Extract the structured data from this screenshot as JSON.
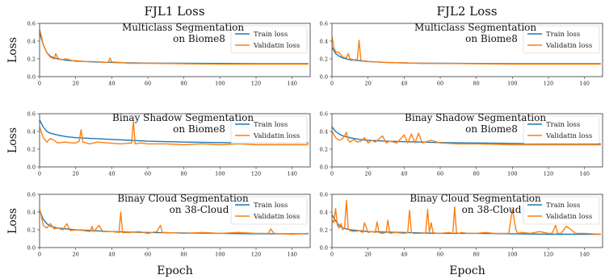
{
  "column_titles": [
    "FJL1 Loss",
    "FJL2 Loss"
  ],
  "row_ylabel": "Loss",
  "xlabel": "Epoch",
  "colors": {
    "train": "#1f77b4",
    "validation": "#ff7f0e"
  },
  "chart_data": [
    {
      "type": "line",
      "panel": "FJL1 row 1",
      "annotation": [
        "Multiclass Segmentation",
        "on Biome8"
      ],
      "legend": [
        "Train loss",
        "Validatin loss"
      ],
      "legend_placement": "upper-right",
      "xlim": [
        0,
        150
      ],
      "ylim": [
        0,
        0.6
      ],
      "xticks": [
        0,
        20,
        40,
        60,
        80,
        100,
        120,
        140
      ],
      "yticks": [
        "0.0",
        "0.2",
        "0.4",
        "0.6"
      ],
      "series": [
        {
          "name": "Train loss",
          "x": [
            0,
            2,
            4,
            6,
            8,
            10,
            15,
            20,
            30,
            40,
            50,
            60,
            80,
            100,
            120,
            149
          ],
          "values": [
            0.5,
            0.36,
            0.27,
            0.23,
            0.21,
            0.2,
            0.185,
            0.175,
            0.165,
            0.16,
            0.155,
            0.152,
            0.15,
            0.148,
            0.145,
            0.145
          ]
        },
        {
          "name": "Validatin loss",
          "x": [
            0,
            1,
            2,
            4,
            6,
            8,
            9,
            10,
            12,
            15,
            18,
            20,
            25,
            30,
            38,
            39,
            40,
            45,
            50,
            60,
            80,
            100,
            120,
            149
          ],
          "values": [
            0.53,
            0.46,
            0.36,
            0.27,
            0.22,
            0.2,
            0.26,
            0.21,
            0.19,
            0.2,
            0.18,
            0.18,
            0.17,
            0.17,
            0.16,
            0.21,
            0.165,
            0.16,
            0.15,
            0.15,
            0.145,
            0.14,
            0.14,
            0.14
          ]
        }
      ]
    },
    {
      "type": "line",
      "panel": "FJL2 row 1",
      "annotation": [
        "Multiclass Segmentation",
        "on Biome8"
      ],
      "legend": [
        "Train loss",
        "Validatin loss"
      ],
      "legend_placement": "upper-right",
      "xlim": [
        0,
        150
      ],
      "ylim": [
        0,
        0.6
      ],
      "xticks": [
        0,
        20,
        40,
        60,
        80,
        100,
        120,
        140
      ],
      "yticks": [
        "0.0",
        "0.2",
        "0.4",
        "0.6"
      ],
      "series": [
        {
          "name": "Train loss",
          "x": [
            0,
            2,
            4,
            6,
            8,
            10,
            15,
            20,
            30,
            40,
            50,
            60,
            80,
            100,
            120,
            149
          ],
          "values": [
            0.33,
            0.26,
            0.23,
            0.21,
            0.2,
            0.19,
            0.18,
            0.17,
            0.16,
            0.155,
            0.15,
            0.15,
            0.148,
            0.146,
            0.145,
            0.145
          ]
        },
        {
          "name": "Validatin loss",
          "x": [
            0,
            1,
            2,
            4,
            6,
            8,
            9,
            10,
            12,
            14,
            15,
            16,
            17,
            18,
            20,
            25,
            30,
            40,
            50,
            60,
            80,
            100,
            120,
            149
          ],
          "values": [
            0.45,
            0.33,
            0.28,
            0.27,
            0.22,
            0.21,
            0.26,
            0.2,
            0.19,
            0.19,
            0.41,
            0.19,
            0.17,
            0.18,
            0.17,
            0.165,
            0.16,
            0.155,
            0.15,
            0.148,
            0.145,
            0.14,
            0.14,
            0.14
          ]
        }
      ]
    },
    {
      "type": "line",
      "panel": "FJL1 row 2",
      "annotation": [
        "Binay Shadow Segmentation",
        "on Biome8"
      ],
      "legend": [
        "Train loss",
        "Validatin loss"
      ],
      "legend_placement": "upper-right",
      "xlim": [
        0,
        150
      ],
      "ylim": [
        0,
        0.6
      ],
      "xticks": [
        0,
        20,
        40,
        60,
        80,
        100,
        120,
        140
      ],
      "yticks": [
        "0.0",
        "0.2",
        "0.4",
        "0.6"
      ],
      "series": [
        {
          "name": "Train loss",
          "x": [
            0,
            2,
            4,
            6,
            10,
            15,
            20,
            30,
            40,
            50,
            60,
            80,
            100,
            120,
            149
          ],
          "values": [
            0.53,
            0.45,
            0.4,
            0.38,
            0.36,
            0.34,
            0.33,
            0.32,
            0.31,
            0.3,
            0.29,
            0.28,
            0.275,
            0.27,
            0.27
          ]
        },
        {
          "name": "Validatin loss",
          "x": [
            0,
            2,
            4,
            6,
            8,
            10,
            14,
            18,
            20,
            22,
            23,
            24,
            28,
            32,
            38,
            45,
            51,
            52,
            53,
            56,
            60,
            70,
            80,
            90,
            100,
            110,
            120,
            130,
            149
          ],
          "values": [
            0.45,
            0.33,
            0.28,
            0.32,
            0.3,
            0.27,
            0.28,
            0.27,
            0.27,
            0.29,
            0.42,
            0.28,
            0.26,
            0.28,
            0.27,
            0.26,
            0.27,
            0.51,
            0.26,
            0.27,
            0.26,
            0.26,
            0.25,
            0.26,
            0.25,
            0.26,
            0.25,
            0.25,
            0.25
          ]
        }
      ]
    },
    {
      "type": "line",
      "panel": "FJL2 row 2",
      "annotation": [
        "Binay Shadow Segmentation",
        "on Biome8"
      ],
      "legend": [
        "Train loss",
        "Validatin loss"
      ],
      "legend_placement": "upper-right",
      "xlim": [
        0,
        150
      ],
      "ylim": [
        0,
        0.6
      ],
      "xticks": [
        0,
        20,
        40,
        60,
        80,
        100,
        120,
        140
      ],
      "yticks": [
        "0.0",
        "0.2",
        "0.4",
        "0.6"
      ],
      "series": [
        {
          "name": "Train loss",
          "x": [
            0,
            2,
            4,
            6,
            10,
            15,
            20,
            30,
            40,
            50,
            60,
            80,
            100,
            120,
            149
          ],
          "values": [
            0.45,
            0.4,
            0.37,
            0.35,
            0.33,
            0.31,
            0.3,
            0.29,
            0.285,
            0.28,
            0.275,
            0.27,
            0.265,
            0.26,
            0.26
          ]
        },
        {
          "name": "Validatin loss",
          "x": [
            0,
            2,
            4,
            6,
            8,
            9,
            10,
            12,
            14,
            16,
            18,
            20,
            22,
            24,
            28,
            30,
            32,
            36,
            40,
            42,
            44,
            46,
            48,
            50,
            55,
            60,
            70,
            80,
            100,
            120,
            149
          ],
          "values": [
            0.4,
            0.33,
            0.3,
            0.32,
            0.39,
            0.3,
            0.28,
            0.31,
            0.28,
            0.29,
            0.33,
            0.27,
            0.3,
            0.28,
            0.35,
            0.27,
            0.29,
            0.27,
            0.36,
            0.27,
            0.37,
            0.27,
            0.38,
            0.27,
            0.3,
            0.27,
            0.26,
            0.26,
            0.25,
            0.25,
            0.25
          ]
        }
      ]
    },
    {
      "type": "line",
      "panel": "FJL1 row 3",
      "annotation": [
        "Binay Cloud Segmentation",
        "on 38-Cloud"
      ],
      "legend": [
        "Train loss",
        "Validatin loss"
      ],
      "legend_placement": "upper-right",
      "xlim": [
        0,
        150
      ],
      "ylim": [
        0,
        0.6
      ],
      "xticks": [
        0,
        20,
        40,
        60,
        80,
        100,
        120,
        140
      ],
      "yticks": [
        "0.0",
        "0.2",
        "0.4",
        "0.6"
      ],
      "series": [
        {
          "name": "Train loss",
          "x": [
            0,
            2,
            4,
            6,
            10,
            15,
            20,
            30,
            40,
            50,
            60,
            80,
            100,
            120,
            149
          ],
          "values": [
            0.42,
            0.32,
            0.27,
            0.24,
            0.22,
            0.21,
            0.2,
            0.19,
            0.18,
            0.175,
            0.17,
            0.165,
            0.16,
            0.155,
            0.155
          ]
        },
        {
          "name": "Validatin loss",
          "x": [
            0,
            1,
            2,
            4,
            6,
            8,
            10,
            13,
            15,
            17,
            20,
            25,
            28,
            29,
            30,
            33,
            35,
            40,
            44,
            45,
            46,
            50,
            55,
            60,
            65,
            67,
            68,
            70,
            80,
            90,
            100,
            110,
            120,
            127,
            128,
            130,
            140,
            149
          ],
          "values": [
            0.43,
            0.36,
            0.25,
            0.22,
            0.27,
            0.21,
            0.22,
            0.2,
            0.27,
            0.19,
            0.2,
            0.19,
            0.18,
            0.24,
            0.18,
            0.25,
            0.18,
            0.18,
            0.17,
            0.4,
            0.17,
            0.17,
            0.18,
            0.16,
            0.18,
            0.25,
            0.17,
            0.17,
            0.16,
            0.17,
            0.16,
            0.17,
            0.16,
            0.16,
            0.21,
            0.16,
            0.15,
            0.16
          ]
        }
      ]
    },
    {
      "type": "line",
      "panel": "FJL2 row 3",
      "annotation": [
        "Binay Cloud Segmentation",
        "on 38-Cloud"
      ],
      "legend": [
        "Train loss",
        "Validatin loss"
      ],
      "legend_placement": "upper-right",
      "xlim": [
        0,
        150
      ],
      "ylim": [
        0,
        0.6
      ],
      "xticks": [
        0,
        20,
        40,
        60,
        80,
        100,
        120,
        140
      ],
      "yticks": [
        "0.0",
        "0.2",
        "0.4",
        "0.6"
      ],
      "series": [
        {
          "name": "Train loss",
          "x": [
            0,
            2,
            4,
            6,
            10,
            15,
            20,
            30,
            40,
            50,
            60,
            80,
            100,
            120,
            149
          ],
          "values": [
            0.37,
            0.3,
            0.25,
            0.22,
            0.2,
            0.19,
            0.18,
            0.175,
            0.17,
            0.165,
            0.16,
            0.16,
            0.155,
            0.15,
            0.15
          ]
        },
        {
          "name": "Validatin loss",
          "x": [
            0,
            1,
            2,
            3,
            4,
            5,
            6,
            7,
            8,
            9,
            10,
            12,
            15,
            17,
            18,
            20,
            22,
            24,
            25,
            26,
            28,
            30,
            31,
            32,
            35,
            40,
            42,
            43,
            44,
            45,
            50,
            52,
            53,
            54,
            55,
            56,
            58,
            60,
            65,
            67,
            68,
            69,
            70,
            72,
            75,
            80,
            85,
            90,
            95,
            98,
            100,
            102,
            103,
            105,
            110,
            115,
            120,
            122,
            124,
            125,
            127,
            130,
            135,
            140,
            149
          ],
          "values": [
            0.31,
            0.28,
            0.44,
            0.25,
            0.22,
            0.27,
            0.2,
            0.23,
            0.53,
            0.21,
            0.19,
            0.18,
            0.19,
            0.17,
            0.28,
            0.17,
            0.18,
            0.17,
            0.29,
            0.17,
            0.16,
            0.17,
            0.31,
            0.16,
            0.17,
            0.16,
            0.17,
            0.42,
            0.17,
            0.16,
            0.16,
            0.17,
            0.43,
            0.17,
            0.28,
            0.17,
            0.16,
            0.16,
            0.17,
            0.16,
            0.46,
            0.17,
            0.16,
            0.17,
            0.16,
            0.16,
            0.17,
            0.16,
            0.16,
            0.16,
            0.43,
            0.2,
            0.16,
            0.17,
            0.16,
            0.18,
            0.16,
            0.16,
            0.25,
            0.16,
            0.16,
            0.24,
            0.16,
            0.16,
            0.15
          ]
        }
      ]
    }
  ]
}
